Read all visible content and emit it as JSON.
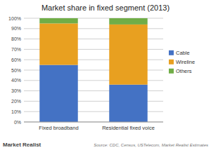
{
  "chart_data": {
    "type": "bar",
    "stacked": true,
    "title": "Market share in fixed segment (2013)",
    "categories": [
      "Fixed broadband",
      "Residential fixed voice"
    ],
    "series": [
      {
        "name": "Cable",
        "color": "#4472C4",
        "values": [
          55,
          36
        ]
      },
      {
        "name": "Wireline",
        "color": "#E8A020",
        "values": [
          40,
          58
        ]
      },
      {
        "name": "Others",
        "color": "#70AD47",
        "values": [
          5,
          6
        ]
      }
    ],
    "ylim": [
      0,
      100
    ],
    "yticks": [
      {
        "value": 0,
        "label": "0%"
      },
      {
        "value": 10,
        "label": "10%"
      },
      {
        "value": 20,
        "label": "20%"
      },
      {
        "value": 30,
        "label": "30%"
      },
      {
        "value": 40,
        "label": "40%"
      },
      {
        "value": 50,
        "label": "50%"
      },
      {
        "value": 60,
        "label": "60%"
      },
      {
        "value": 70,
        "label": "70%"
      },
      {
        "value": 80,
        "label": "80%"
      },
      {
        "value": 90,
        "label": "90%"
      },
      {
        "value": 100,
        "label": "100%"
      }
    ],
    "grid": true,
    "legend": "right",
    "annotations": [
      "Source: CDC, Census, USTelecom, Market Realist Estimates",
      "Market Realist"
    ]
  }
}
